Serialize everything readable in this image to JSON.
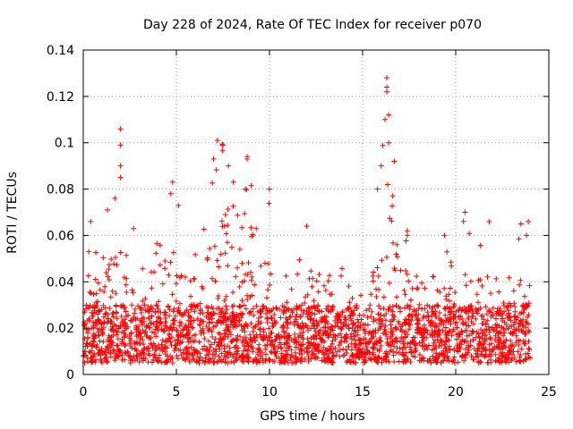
{
  "chart_data": {
    "type": "scatter",
    "title": "Day 228 of 2024, Rate Of TEC Index for receiver p070",
    "xlabel": "GPS time / hours",
    "ylabel": "ROTI / TECUs",
    "xlim": [
      0,
      25
    ],
    "ylim": [
      0,
      0.14
    ],
    "xticks": [
      "0",
      "5",
      "10",
      "15",
      "20",
      "25"
    ],
    "yticks": [
      "0",
      "0.02",
      "0.04",
      "0.06",
      "0.08",
      "0.1",
      "0.12",
      "0.14"
    ],
    "grid": true,
    "marker": "+",
    "color": "#ff0000",
    "data_coverage_hours": [
      0,
      24
    ],
    "baseline_range": [
      0.005,
      0.03
    ],
    "envelope": [
      {
        "x": 0.0,
        "upper": 0.035
      },
      {
        "x": 0.3,
        "upper": 0.054
      },
      {
        "x": 0.5,
        "upper": 0.066
      },
      {
        "x": 1.0,
        "upper": 0.045
      },
      {
        "x": 1.3,
        "upper": 0.071
      },
      {
        "x": 1.7,
        "upper": 0.076
      },
      {
        "x": 2.0,
        "upper": 0.106
      },
      {
        "x": 2.5,
        "upper": 0.055
      },
      {
        "x": 3.0,
        "upper": 0.045
      },
      {
        "x": 3.5,
        "upper": 0.05
      },
      {
        "x": 4.0,
        "upper": 0.06
      },
      {
        "x": 4.5,
        "upper": 0.07
      },
      {
        "x": 4.8,
        "upper": 0.083
      },
      {
        "x": 5.5,
        "upper": 0.065
      },
      {
        "x": 6.0,
        "upper": 0.06
      },
      {
        "x": 6.5,
        "upper": 0.072
      },
      {
        "x": 7.0,
        "upper": 0.09
      },
      {
        "x": 7.3,
        "upper": 0.101
      },
      {
        "x": 7.7,
        "upper": 0.098
      },
      {
        "x": 8.0,
        "upper": 0.086
      },
      {
        "x": 8.5,
        "upper": 0.07
      },
      {
        "x": 8.8,
        "upper": 0.094
      },
      {
        "x": 9.5,
        "upper": 0.062
      },
      {
        "x": 10.0,
        "upper": 0.08
      },
      {
        "x": 10.5,
        "upper": 0.05
      },
      {
        "x": 11.0,
        "upper": 0.045
      },
      {
        "x": 11.5,
        "upper": 0.05
      },
      {
        "x": 12.0,
        "upper": 0.064
      },
      {
        "x": 12.5,
        "upper": 0.045
      },
      {
        "x": 13.0,
        "upper": 0.05
      },
      {
        "x": 13.5,
        "upper": 0.055
      },
      {
        "x": 14.0,
        "upper": 0.05
      },
      {
        "x": 14.5,
        "upper": 0.05
      },
      {
        "x": 15.0,
        "upper": 0.05
      },
      {
        "x": 15.5,
        "upper": 0.062
      },
      {
        "x": 15.8,
        "upper": 0.08
      },
      {
        "x": 16.1,
        "upper": 0.1
      },
      {
        "x": 16.3,
        "upper": 0.128
      },
      {
        "x": 16.7,
        "upper": 0.09
      },
      {
        "x": 17.0,
        "upper": 0.07
      },
      {
        "x": 17.5,
        "upper": 0.062
      },
      {
        "x": 18.0,
        "upper": 0.05
      },
      {
        "x": 18.5,
        "upper": 0.045
      },
      {
        "x": 19.0,
        "upper": 0.05
      },
      {
        "x": 19.5,
        "upper": 0.06
      },
      {
        "x": 20.0,
        "upper": 0.05
      },
      {
        "x": 20.5,
        "upper": 0.07
      },
      {
        "x": 21.0,
        "upper": 0.06
      },
      {
        "x": 21.5,
        "upper": 0.06
      },
      {
        "x": 22.0,
        "upper": 0.066
      },
      {
        "x": 22.5,
        "upper": 0.045
      },
      {
        "x": 23.0,
        "upper": 0.05
      },
      {
        "x": 23.5,
        "upper": 0.065
      },
      {
        "x": 23.8,
        "upper": 0.066
      },
      {
        "x": 24.0,
        "upper": 0.04
      }
    ],
    "notable_points": [
      {
        "x": 0.3,
        "y": 0.053
      },
      {
        "x": 0.4,
        "y": 0.066
      },
      {
        "x": 1.3,
        "y": 0.071
      },
      {
        "x": 2.0,
        "y": 0.106
      },
      {
        "x": 2.0,
        "y": 0.099
      },
      {
        "x": 2.0,
        "y": 0.09
      },
      {
        "x": 2.0,
        "y": 0.085
      },
      {
        "x": 1.7,
        "y": 0.076
      },
      {
        "x": 2.7,
        "y": 0.063
      },
      {
        "x": 4.8,
        "y": 0.083
      },
      {
        "x": 4.7,
        "y": 0.078
      },
      {
        "x": 7.2,
        "y": 0.101
      },
      {
        "x": 7.5,
        "y": 0.099
      },
      {
        "x": 7.0,
        "y": 0.093
      },
      {
        "x": 7.8,
        "y": 0.09
      },
      {
        "x": 8.8,
        "y": 0.094
      },
      {
        "x": 8.8,
        "y": 0.093
      },
      {
        "x": 8.7,
        "y": 0.08
      },
      {
        "x": 10.0,
        "y": 0.08
      },
      {
        "x": 12.0,
        "y": 0.064
      },
      {
        "x": 16.3,
        "y": 0.128
      },
      {
        "x": 16.3,
        "y": 0.124
      },
      {
        "x": 16.3,
        "y": 0.122
      },
      {
        "x": 16.4,
        "y": 0.112
      },
      {
        "x": 16.2,
        "y": 0.11
      },
      {
        "x": 16.4,
        "y": 0.1
      },
      {
        "x": 16.7,
        "y": 0.092
      },
      {
        "x": 16.0,
        "y": 0.09
      },
      {
        "x": 15.8,
        "y": 0.08
      },
      {
        "x": 17.4,
        "y": 0.062
      },
      {
        "x": 19.4,
        "y": 0.06
      },
      {
        "x": 20.5,
        "y": 0.07
      },
      {
        "x": 21.8,
        "y": 0.066
      },
      {
        "x": 23.5,
        "y": 0.065
      },
      {
        "x": 23.9,
        "y": 0.066
      },
      {
        "x": 23.8,
        "y": 0.06
      }
    ]
  }
}
